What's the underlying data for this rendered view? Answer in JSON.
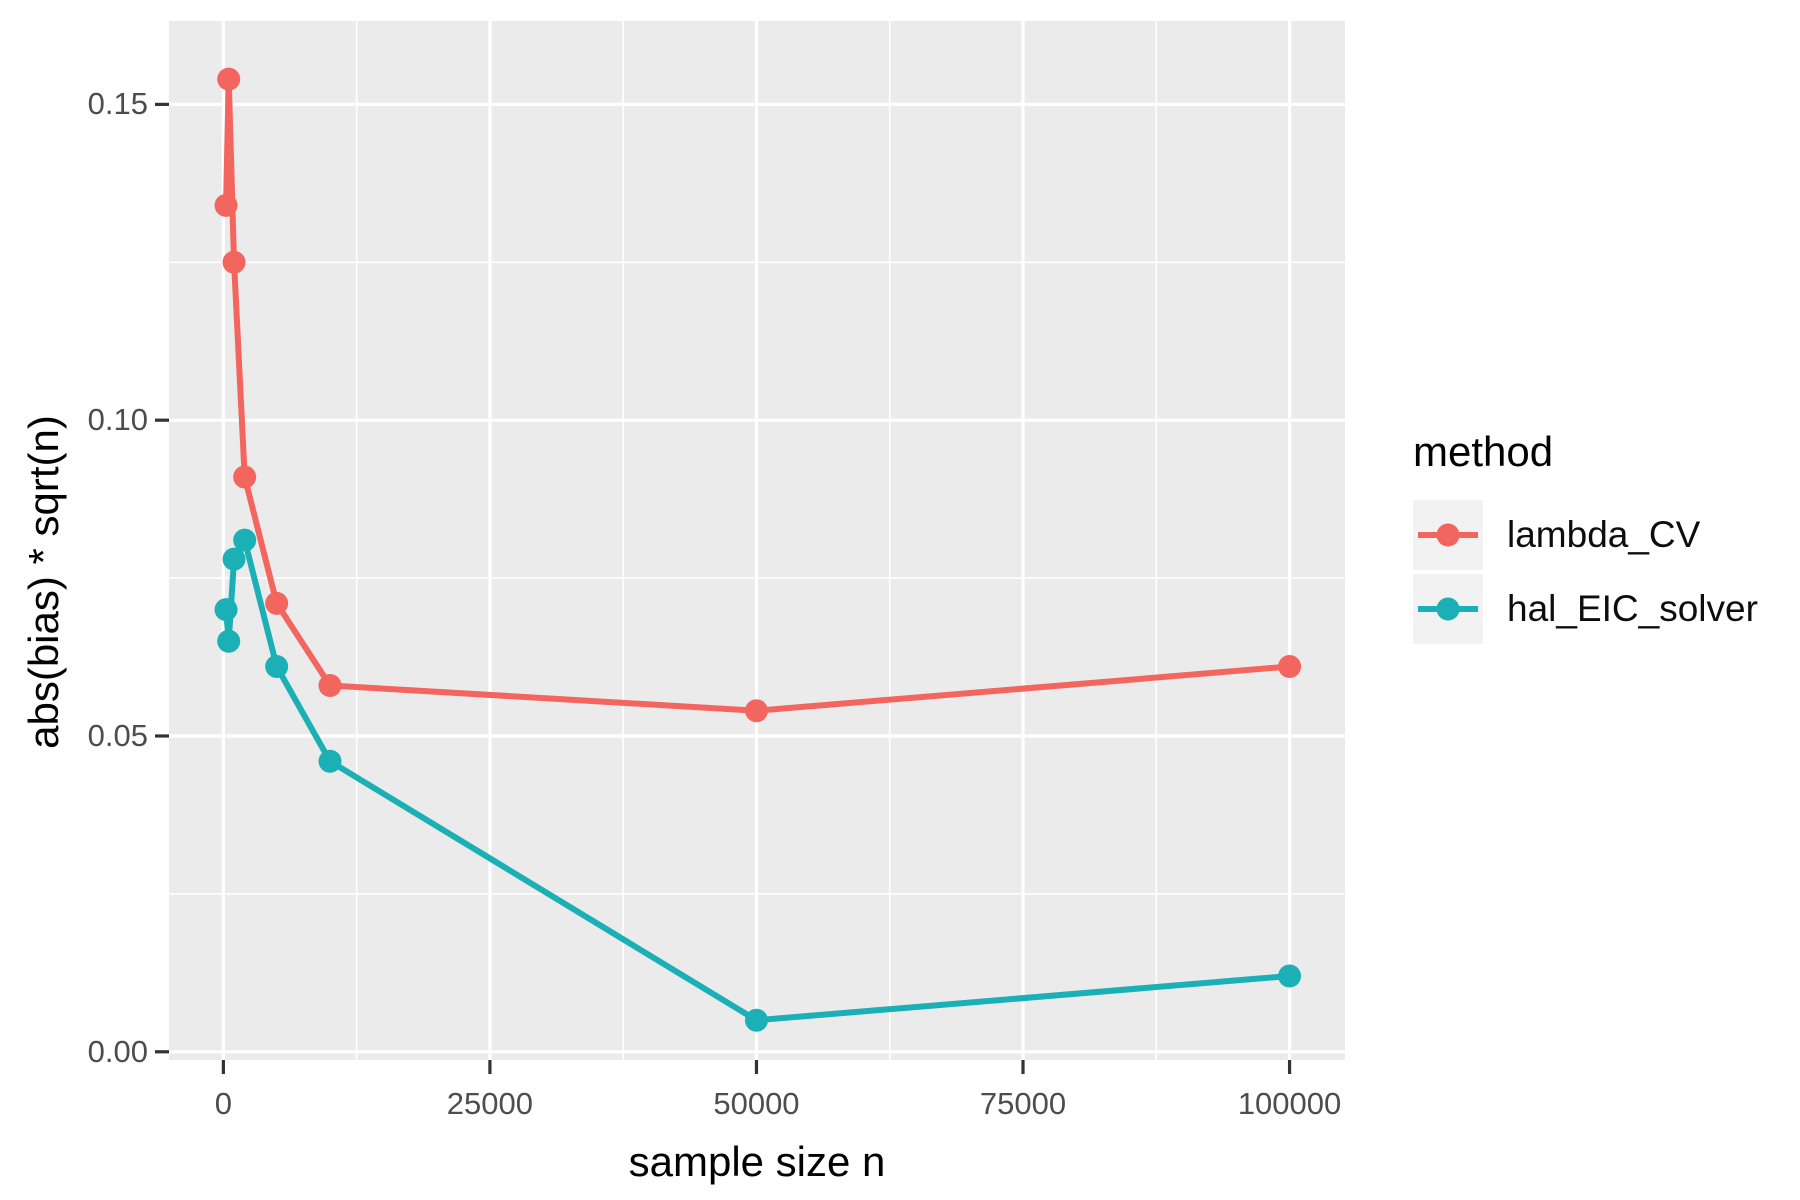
{
  "figure": {
    "background": "#ffffff",
    "panel_background": "#ebebeb",
    "grid_color": "#ffffff",
    "tick_mark_color": "#333333",
    "tick_label_color": "#4d4d4d",
    "axis_title_color": "#000000",
    "legend_key_background": "#f2f2f2"
  },
  "chart_data": {
    "type": "line",
    "xlabel": "sample size n",
    "ylabel": "abs(bias) * sqrt(n)",
    "x": [
      250,
      500,
      1000,
      2000,
      5000,
      10000,
      50000,
      100000
    ],
    "series": [
      {
        "name": "lambda_CV",
        "color": "#f3655f",
        "values": [
          0.134,
          0.154,
          0.125,
          0.091,
          0.071,
          0.058,
          0.054,
          0.061
        ]
      },
      {
        "name": "hal_EIC_solver",
        "color": "#1ab0b5",
        "values": [
          0.07,
          0.065,
          0.078,
          0.081,
          0.061,
          0.046,
          0.005,
          0.012
        ]
      }
    ],
    "xlim": [
      -5100,
      105200
    ],
    "ylim": [
      -0.0013,
      0.1632
    ],
    "x_ticks": [
      0,
      25000,
      50000,
      75000,
      100000
    ],
    "x_tick_labels": [
      "0",
      "25000",
      "50000",
      "75000",
      "100000"
    ],
    "y_ticks": [
      0.0,
      0.05,
      0.1,
      0.15
    ],
    "y_tick_labels": [
      "0.00",
      "0.05",
      "0.10",
      "0.15"
    ],
    "x_minor_ticks": [
      12500,
      37500,
      62500,
      87500
    ],
    "y_minor_ticks": [
      0.025,
      0.075,
      0.125
    ],
    "grid": true,
    "legend_position": "right",
    "marker_radius": 11.5,
    "line_width": 6
  },
  "legend": {
    "title": "method",
    "items": [
      {
        "label": "lambda_CV",
        "color": "#f3655f"
      },
      {
        "label": "hal_EIC_solver",
        "color": "#1ab0b5"
      }
    ]
  }
}
